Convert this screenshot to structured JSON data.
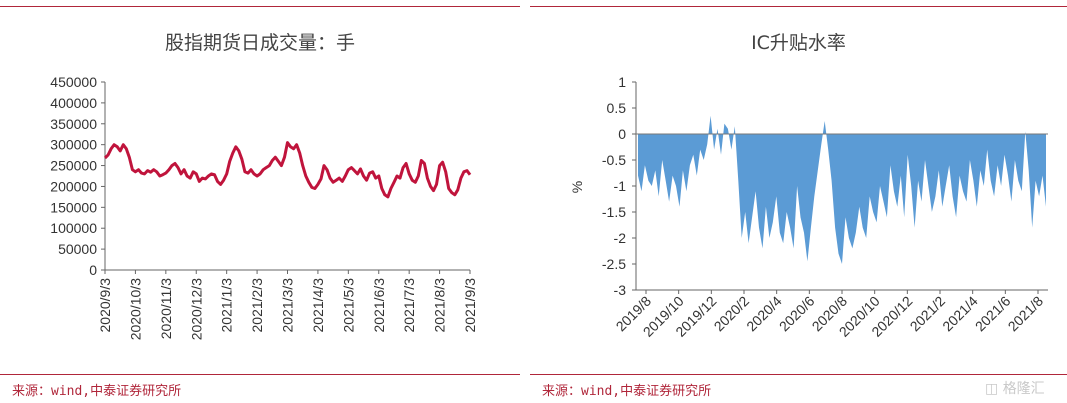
{
  "chart_data": [
    {
      "type": "line",
      "title": "股指期货日成交量：手",
      "xlabel": "",
      "ylabel": "",
      "ylim": [
        0,
        450000
      ],
      "yticks": [
        "0",
        "50000",
        "100000",
        "150000",
        "200000",
        "250000",
        "300000",
        "350000",
        "400000",
        "450000"
      ],
      "xticks": [
        "2020/9/3",
        "2020/10/3",
        "2020/11/3",
        "2020/12/3",
        "2021/1/3",
        "2021/2/3",
        "2021/3/3",
        "2021/4/3",
        "2021/5/3",
        "2021/6/3",
        "2021/7/3",
        "2021/8/3",
        "2021/9/3"
      ],
      "color": "#c0143c",
      "grid": false,
      "series": [
        {
          "values": [
            268000,
            275000,
            290000,
            300000,
            295000,
            285000,
            300000,
            290000,
            270000,
            240000,
            235000,
            240000,
            232000,
            230000,
            238000,
            234000,
            240000,
            235000,
            225000,
            228000,
            232000,
            240000,
            250000,
            255000,
            245000,
            230000,
            240000,
            225000,
            220000,
            235000,
            230000,
            212000,
            220000,
            218000,
            225000,
            230000,
            228000,
            212000,
            205000,
            215000,
            230000,
            260000,
            280000,
            295000,
            285000,
            265000,
            235000,
            232000,
            240000,
            230000,
            225000,
            230000,
            240000,
            245000,
            250000,
            262000,
            270000,
            260000,
            250000,
            270000,
            305000,
            295000,
            290000,
            300000,
            280000,
            250000,
            225000,
            210000,
            198000,
            195000,
            205000,
            218000,
            250000,
            240000,
            220000,
            210000,
            215000,
            220000,
            212000,
            225000,
            240000,
            245000,
            238000,
            230000,
            242000,
            225000,
            215000,
            232000,
            235000,
            220000,
            225000,
            195000,
            180000,
            175000,
            195000,
            210000,
            225000,
            220000,
            245000,
            255000,
            230000,
            215000,
            210000,
            225000,
            262000,
            255000,
            220000,
            200000,
            190000,
            205000,
            250000,
            258000,
            235000,
            195000,
            185000,
            180000,
            192000,
            220000,
            235000,
            238000,
            228000
          ]
        }
      ],
      "source": "来源：wind,中泰证券研究所"
    },
    {
      "type": "area",
      "title": "IC升贴水率",
      "xlabel": "",
      "ylabel": "%",
      "ylim": [
        -3,
        1
      ],
      "yticks": [
        "1",
        "0.5",
        "0",
        "-0.5",
        "-1",
        "-1.5",
        "-2",
        "-2.5",
        "-3"
      ],
      "xticks": [
        "2019/8",
        "2019/10",
        "2019/12",
        "2020/2",
        "2020/4",
        "2020/6",
        "2020/8",
        "2020/10",
        "2020/12",
        "2021/2",
        "2021/4",
        "2021/6",
        "2021/8"
      ],
      "color": "#5b9bd5",
      "grid": false,
      "series": [
        {
          "values": [
            -0.8,
            -1.1,
            -0.6,
            -0.9,
            -1.0,
            -0.7,
            -1.2,
            -0.5,
            -0.9,
            -1.3,
            -0.8,
            -1.0,
            -1.4,
            -0.7,
            -1.1,
            -0.6,
            -0.4,
            -0.8,
            -0.3,
            -0.5,
            -0.2,
            0.35,
            -0.3,
            0.1,
            -0.4,
            0.2,
            0.1,
            -0.3,
            0.15,
            -0.9,
            -2.0,
            -1.5,
            -2.1,
            -1.6,
            -1.1,
            -1.8,
            -2.2,
            -1.4,
            -2.0,
            -1.7,
            -1.2,
            -1.9,
            -2.1,
            -1.5,
            -1.8,
            -2.2,
            -1.0,
            -1.6,
            -1.9,
            -2.45,
            -1.8,
            -1.2,
            -0.7,
            -0.2,
            0.25,
            -0.3,
            -0.9,
            -1.8,
            -2.3,
            -2.5,
            -1.6,
            -2.0,
            -2.2,
            -1.9,
            -1.4,
            -1.8,
            -2.0,
            -1.2,
            -1.5,
            -1.7,
            -1.0,
            -1.3,
            -1.6,
            -0.6,
            -1.1,
            -1.4,
            -0.8,
            -1.6,
            -0.4,
            -1.0,
            -1.8,
            -0.9,
            -1.3,
            -0.5,
            -1.0,
            -1.5,
            -1.2,
            -0.7,
            -1.4,
            -1.0,
            -0.6,
            -1.2,
            -1.6,
            -0.8,
            -1.1,
            -1.3,
            -0.5,
            -0.9,
            -1.4,
            -0.7,
            -1.0,
            -0.3,
            -0.9,
            -1.2,
            -0.6,
            -1.0,
            -0.4,
            -0.8,
            -1.3,
            -0.5,
            -0.9,
            -1.1,
            0.05,
            -0.7,
            -1.8,
            -0.9,
            -1.2,
            -0.8,
            -1.4
          ]
        }
      ],
      "source": "来源：wind,中泰证券研究所"
    }
  ],
  "watermark": "格隆汇"
}
